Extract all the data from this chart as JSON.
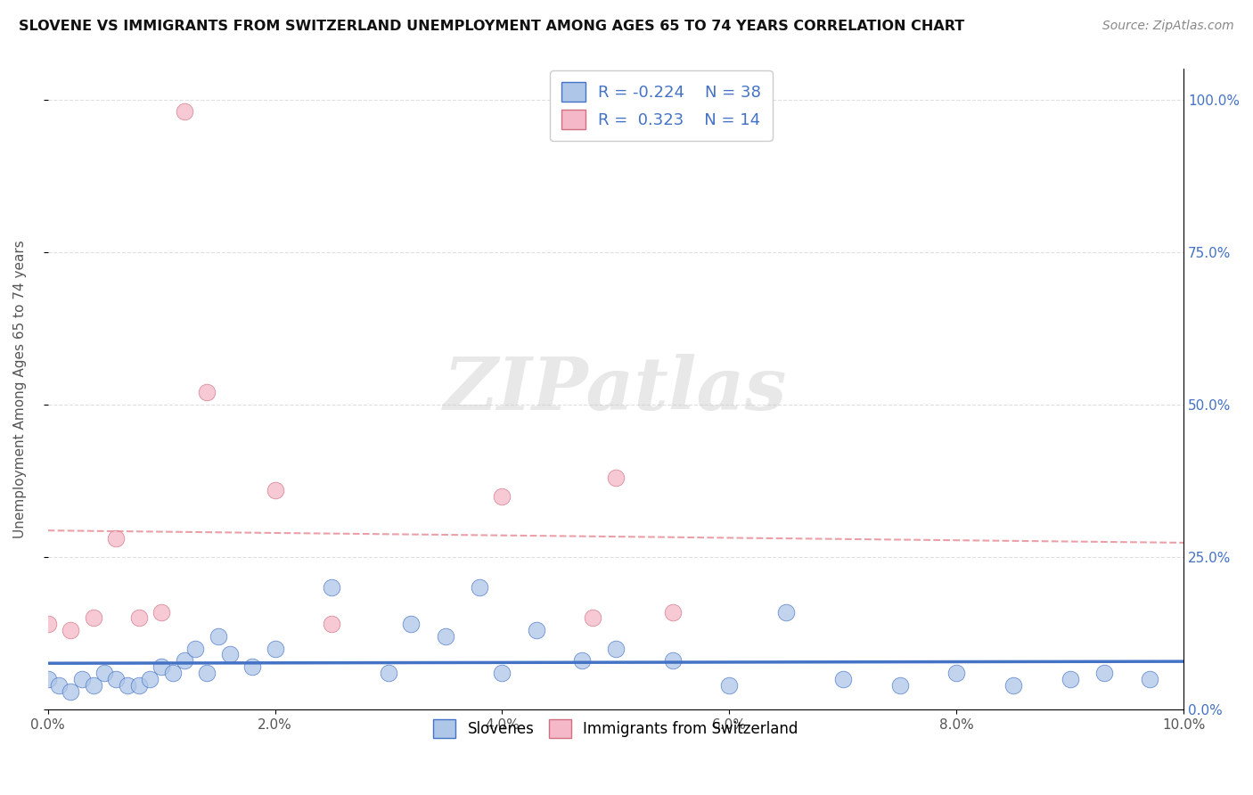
{
  "title": "SLOVENE VS IMMIGRANTS FROM SWITZERLAND UNEMPLOYMENT AMONG AGES 65 TO 74 YEARS CORRELATION CHART",
  "source": "Source: ZipAtlas.com",
  "ylabel": "Unemployment Among Ages 65 to 74 years",
  "xlim": [
    0.0,
    0.1
  ],
  "ylim": [
    0.0,
    1.05
  ],
  "xticks": [
    0.0,
    0.02,
    0.04,
    0.06,
    0.08,
    0.1
  ],
  "xticklabels": [
    "0.0%",
    "2.0%",
    "4.0%",
    "6.0%",
    "8.0%",
    "10.0%"
  ],
  "yticks": [
    0.0,
    0.25,
    0.5,
    0.75,
    1.0
  ],
  "yticklabels": [
    "0.0%",
    "25.0%",
    "50.0%",
    "75.0%",
    "100.0%"
  ],
  "color_slovene": "#aec6e8",
  "color_swiss": "#f4b8c8",
  "trendline_slovene_color": "#4472c4",
  "trendline_swiss_color": "#e8909a",
  "watermark_text": "ZIPatlas",
  "slovene_x": [
    0.0,
    0.001,
    0.002,
    0.003,
    0.004,
    0.005,
    0.006,
    0.007,
    0.008,
    0.009,
    0.01,
    0.011,
    0.012,
    0.013,
    0.014,
    0.015,
    0.016,
    0.018,
    0.02,
    0.025,
    0.03,
    0.032,
    0.035,
    0.038,
    0.04,
    0.043,
    0.047,
    0.05,
    0.055,
    0.06,
    0.065,
    0.07,
    0.075,
    0.08,
    0.085,
    0.09,
    0.093,
    0.097
  ],
  "slovene_y": [
    0.05,
    0.04,
    0.03,
    0.05,
    0.04,
    0.06,
    0.05,
    0.04,
    0.04,
    0.05,
    0.07,
    0.06,
    0.08,
    0.1,
    0.06,
    0.12,
    0.09,
    0.07,
    0.1,
    0.2,
    0.06,
    0.14,
    0.12,
    0.2,
    0.06,
    0.13,
    0.08,
    0.1,
    0.08,
    0.04,
    0.16,
    0.05,
    0.04,
    0.06,
    0.04,
    0.05,
    0.06,
    0.05
  ],
  "swiss_x": [
    0.0,
    0.002,
    0.004,
    0.006,
    0.008,
    0.01,
    0.012,
    0.014,
    0.02,
    0.025,
    0.04,
    0.048,
    0.05,
    0.055
  ],
  "swiss_y": [
    0.14,
    0.13,
    0.15,
    0.28,
    0.15,
    0.16,
    0.98,
    0.52,
    0.36,
    0.14,
    0.35,
    0.15,
    0.38,
    0.16
  ],
  "background_color": "#ffffff",
  "grid_color": "#dddddd"
}
